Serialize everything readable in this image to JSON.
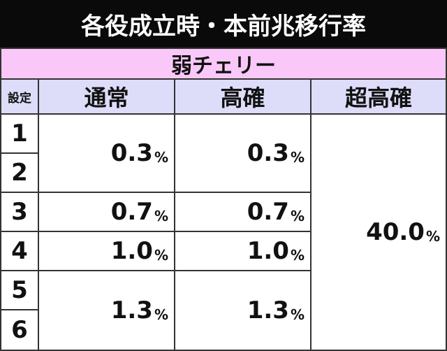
{
  "header": {
    "title": "各役成立時・本前兆移行率",
    "subtitle": "弱チェリー"
  },
  "table": {
    "columns": [
      "設定",
      "通常",
      "高確",
      "超高確"
    ],
    "settings": [
      "1",
      "2",
      "3",
      "4",
      "5",
      "6"
    ],
    "normal": [
      "0.3%",
      "0.7%",
      "1.0%",
      "1.3%"
    ],
    "high": [
      "0.3%",
      "0.7%",
      "1.0%",
      "1.3%"
    ],
    "super_high": "40.0%"
  }
}
